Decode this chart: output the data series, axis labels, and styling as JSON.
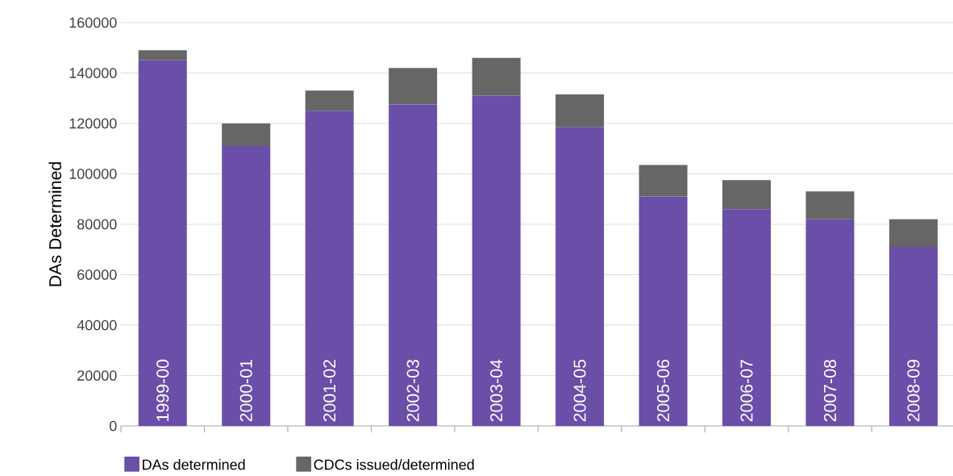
{
  "chart_data": {
    "type": "bar",
    "stacked": true,
    "ylabel": "DAs Determined",
    "categories": [
      "1999-00",
      "2000-01",
      "2001-02",
      "2002-03",
      "2003-04",
      "2004-05",
      "2005-06",
      "2006-07",
      "2007-08",
      "2008-09"
    ],
    "series": [
      {
        "name": "DAs determined",
        "color": "#6a4ea8",
        "values": [
          145000,
          111000,
          125000,
          127500,
          131000,
          118500,
          91000,
          86000,
          82000,
          71000
        ]
      },
      {
        "name": "CDCs issued/determined",
        "color": "#666666",
        "values": [
          4000,
          9000,
          8000,
          14500,
          15000,
          13000,
          12500,
          11500,
          11000,
          11000
        ]
      }
    ],
    "ylim": [
      0,
      160000
    ],
    "yticks": [
      0,
      20000,
      40000,
      60000,
      80000,
      100000,
      120000,
      140000,
      160000
    ],
    "grid": "y",
    "legend": "bottom left"
  }
}
